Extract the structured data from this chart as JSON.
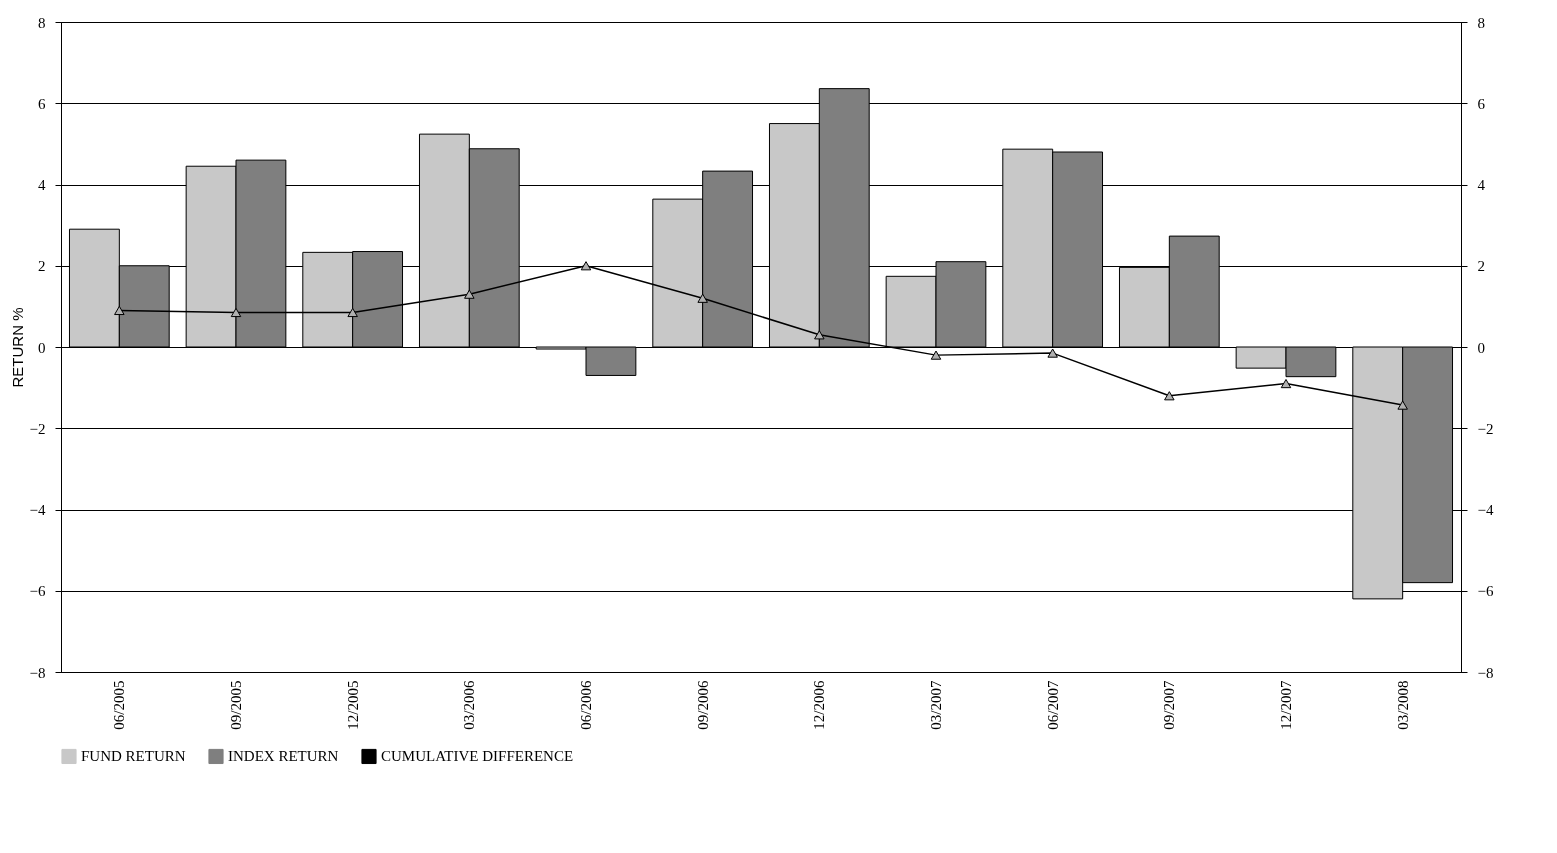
{
  "chart_data": {
    "type": "bar",
    "ylabel": "RETURN %",
    "categories": [
      "06/2005",
      "09/2005",
      "12/2005",
      "03/2006",
      "06/2006",
      "09/2006",
      "12/2006",
      "03/2007",
      "06/2007",
      "09/2007",
      "12/2007",
      "03/2008"
    ],
    "series": [
      {
        "name": "FUND RETURN",
        "color": "#c8c8c8",
        "values": [
          2.9,
          4.45,
          2.33,
          5.24,
          -0.05,
          3.64,
          5.5,
          1.74,
          4.87,
          1.96,
          -0.52,
          -6.2
        ]
      },
      {
        "name": "INDEX RETURN",
        "color": "#7f7f7f",
        "values": [
          2.0,
          4.6,
          2.35,
          4.88,
          -0.7,
          4.33,
          6.36,
          2.1,
          4.8,
          2.73,
          -0.73,
          -5.8
        ]
      },
      {
        "name": "CUMULATIVE DIFFERENCE",
        "type": "line",
        "axis": "y2",
        "color": "#000000",
        "marker": "triangle",
        "values": [
          0.9,
          0.85,
          0.85,
          1.3,
          2.0,
          1.2,
          0.3,
          -0.2,
          -0.15,
          -1.2,
          -0.9,
          -1.43
        ]
      }
    ],
    "ylim": [
      -8,
      8
    ],
    "yticks": [
      -8,
      -6,
      -4,
      -2,
      0,
      2,
      4,
      6,
      8
    ],
    "y2lim": [
      -8,
      8
    ],
    "y2ticks": [
      -8,
      -6,
      -4,
      -2,
      0,
      2,
      4,
      6,
      8
    ],
    "grid": "y",
    "legend": "bottom"
  }
}
